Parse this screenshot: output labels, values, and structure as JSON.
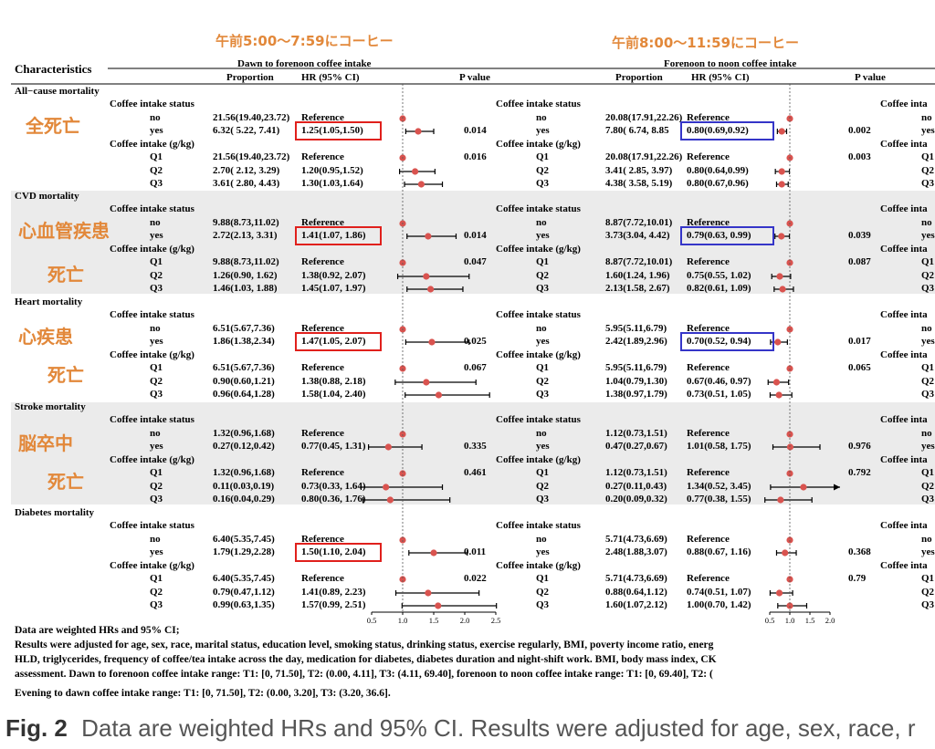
{
  "header_labels": {
    "left": "午前5:00〜7:59にコーヒー",
    "right": "午前8:00〜11:59にコーヒー"
  },
  "table_header": {
    "characteristics": "Characteristics",
    "group1": "Dawn to forenoon coffee intake",
    "group2": "Forenoon to noon coffee intake",
    "proportion": "Proportion",
    "hr": "HR (95% CI)",
    "pvalue": "P value"
  },
  "sub_labels": {
    "status": "Coffee intake status",
    "status_cut": "Coffee inta",
    "gkg": "Coffee intake (g/kg)",
    "gkg_cut": "Coffee inta"
  },
  "jp_labels": [
    {
      "row": "mortality-all",
      "lines": [
        "全死亡"
      ]
    },
    {
      "row": "mortality-cvd",
      "lines": [
        "心血管疾患",
        "死亡"
      ]
    },
    {
      "row": "mortality-heart",
      "lines": [
        "心疾患",
        "死亡"
      ]
    },
    {
      "row": "mortality-stroke",
      "lines": [
        "脳卒中",
        "死亡"
      ]
    }
  ],
  "chart_data": {
    "type": "forest",
    "axis1": {
      "ticks": [
        0.5,
        1.0,
        1.5,
        2.0,
        2.5
      ],
      "tick_labels": [
        "0.5",
        "1.0",
        "1.5",
        "2.0",
        "2.5"
      ],
      "reference": 1.0
    },
    "axis2": {
      "ticks": [
        0.5,
        1.0,
        1.5,
        2.0
      ],
      "tick_labels": [
        "0.5",
        "1.0",
        "1.5",
        "2.0"
      ],
      "reference": 1.0
    },
    "sections": [
      {
        "title": "All−cause mortality",
        "shaded": false,
        "status": [
          {
            "label": "no",
            "p1": "21.56(19.40,23.72)",
            "h1": "Reference",
            "e1": [
              1.0,
              1.0,
              1.0
            ],
            "p2": "20.08(17.91,22.26)",
            "h2": "Reference",
            "e2": [
              1.0,
              1.0,
              1.0
            ],
            "r3": "no"
          },
          {
            "label": "yes",
            "p1": "6.32( 5.22, 7.41)",
            "h1": "1.25(1.05,1.50)",
            "e1": [
              1.25,
              1.05,
              1.5
            ],
            "p2": "7.80( 6.74, 8.85",
            "h2": "0.80(0.69,0.92)",
            "e2": [
              0.8,
              0.69,
              0.92
            ],
            "r3": "yes"
          }
        ],
        "status_pv1": "0.014",
        "status_pv2": "0.002",
        "gkg": [
          {
            "label": "Q1",
            "p1": "21.56(19.40,23.72)",
            "h1": "Reference",
            "e1": [
              1.0,
              1.0,
              1.0
            ],
            "p2": "20.08(17.91,22.26)",
            "h2": "Reference",
            "e2": [
              1.0,
              1.0,
              1.0
            ],
            "r3": "Q1"
          },
          {
            "label": "Q2",
            "p1": "2.70( 2.12, 3.29)",
            "h1": "1.20(0.95,1.52)",
            "e1": [
              1.2,
              0.95,
              1.52
            ],
            "p2": "3.41( 2.85, 3.97)",
            "h2": "0.80(0.64,0.99)",
            "e2": [
              0.8,
              0.64,
              0.99
            ],
            "r3": "Q2"
          },
          {
            "label": "Q3",
            "p1": "3.61( 2.80, 4.43)",
            "h1": "1.30(1.03,1.64)",
            "e1": [
              1.3,
              1.03,
              1.64
            ],
            "p2": "4.38( 3.58, 5.19)",
            "h2": "0.80(0.67,0.96)",
            "e2": [
              0.8,
              0.67,
              0.96
            ],
            "r3": "Q3"
          }
        ],
        "gkg_pv1": "0.016",
        "gkg_pv2": "0.003"
      },
      {
        "title": "CVD mortality",
        "shaded": true,
        "status": [
          {
            "label": "no",
            "p1": "9.88(8.73,11.02)",
            "h1": "Reference",
            "e1": [
              1.0,
              1.0,
              1.0
            ],
            "p2": "8.87(7.72,10.01)",
            "h2": "Reference",
            "e2": [
              1.0,
              1.0,
              1.0
            ],
            "r3": "no"
          },
          {
            "label": "yes",
            "p1": "2.72(2.13, 3.31)",
            "h1": "1.41(1.07, 1.86)",
            "e1": [
              1.41,
              1.07,
              1.86
            ],
            "p2": "3.73(3.04, 4.42)",
            "h2": "0.79(0.63, 0.99)",
            "e2": [
              0.79,
              0.63,
              0.99
            ],
            "r3": "yes"
          }
        ],
        "status_pv1": "0.014",
        "status_pv2": "0.039",
        "gkg": [
          {
            "label": "Q1",
            "p1": "9.88(8.73,11.02)",
            "h1": "Reference",
            "e1": [
              1.0,
              1.0,
              1.0
            ],
            "p2": "8.87(7.72,10.01)",
            "h2": "Reference",
            "e2": [
              1.0,
              1.0,
              1.0
            ],
            "r3": "Q1"
          },
          {
            "label": "Q2",
            "p1": "1.26(0.90, 1.62)",
            "h1": "1.38(0.92, 2.07)",
            "e1": [
              1.38,
              0.92,
              2.07
            ],
            "p2": "1.60(1.24, 1.96)",
            "h2": "0.75(0.55, 1.02)",
            "e2": [
              0.75,
              0.55,
              1.02
            ],
            "r3": "Q2"
          },
          {
            "label": "Q3",
            "p1": "1.46(1.03, 1.88)",
            "h1": "1.45(1.07, 1.97)",
            "e1": [
              1.45,
              1.07,
              1.97
            ],
            "p2": "2.13(1.58, 2.67)",
            "h2": "0.82(0.61, 1.09)",
            "e2": [
              0.82,
              0.61,
              1.09
            ],
            "r3": "Q3"
          }
        ],
        "gkg_pv1": "0.047",
        "gkg_pv2": "0.087"
      },
      {
        "title": "Heart mortality",
        "shaded": false,
        "status": [
          {
            "label": "no",
            "p1": "6.51(5.67,7.36)",
            "h1": "Reference",
            "e1": [
              1.0,
              1.0,
              1.0
            ],
            "p2": "5.95(5.11,6.79)",
            "h2": "Reference",
            "e2": [
              1.0,
              1.0,
              1.0
            ],
            "r3": "no"
          },
          {
            "label": "yes",
            "p1": "1.86(1.38,2.34)",
            "h1": "1.47(1.05, 2.07)",
            "e1": [
              1.47,
              1.05,
              2.07
            ],
            "p2": "2.42(1.89,2.96)",
            "h2": "0.70(0.52, 0.94)",
            "e2": [
              0.7,
              0.52,
              0.94
            ],
            "r3": "yes"
          }
        ],
        "status_pv1": "0.025",
        "status_pv2": "0.017",
        "gkg": [
          {
            "label": "Q1",
            "p1": "6.51(5.67,7.36)",
            "h1": "Reference",
            "e1": [
              1.0,
              1.0,
              1.0
            ],
            "p2": "5.95(5.11,6.79)",
            "h2": "Reference",
            "e2": [
              1.0,
              1.0,
              1.0
            ],
            "r3": "Q1"
          },
          {
            "label": "Q2",
            "p1": "0.90(0.60,1.21)",
            "h1": "1.38(0.88, 2.18)",
            "e1": [
              1.38,
              0.88,
              2.18
            ],
            "p2": "1.04(0.79,1.30)",
            "h2": "0.67(0.46, 0.97)",
            "e2": [
              0.67,
              0.46,
              0.97
            ],
            "r3": "Q2"
          },
          {
            "label": "Q3",
            "p1": "0.96(0.64,1.28)",
            "h1": "1.58(1.04, 2.40)",
            "e1": [
              1.58,
              1.04,
              2.4
            ],
            "p2": "1.38(0.97,1.79)",
            "h2": "0.73(0.51, 1.05)",
            "e2": [
              0.73,
              0.51,
              1.05
            ],
            "r3": "Q3"
          }
        ],
        "gkg_pv1": "0.067",
        "gkg_pv2": "0.065"
      },
      {
        "title": "Stroke mortality",
        "shaded": true,
        "status": [
          {
            "label": "no",
            "p1": "1.32(0.96,1.68)",
            "h1": "Reference",
            "e1": [
              1.0,
              1.0,
              1.0
            ],
            "p2": "1.12(0.73,1.51)",
            "h2": "Reference",
            "e2": [
              1.0,
              1.0,
              1.0
            ],
            "r3": "no"
          },
          {
            "label": "yes",
            "p1": "0.27(0.12,0.42)",
            "h1": "0.77(0.45, 1.31)",
            "e1": [
              0.77,
              0.45,
              1.31
            ],
            "p2": "0.47(0.27,0.67)",
            "h2": "1.01(0.58, 1.75)",
            "e2": [
              1.01,
              0.58,
              1.75
            ],
            "r3": "yes"
          }
        ],
        "status_pv1": "0.335",
        "status_pv2": "0.976",
        "gkg": [
          {
            "label": "Q1",
            "p1": "1.32(0.96,1.68)",
            "h1": "Reference",
            "e1": [
              1.0,
              1.0,
              1.0
            ],
            "p2": "1.12(0.73,1.51)",
            "h2": "Reference",
            "e2": [
              1.0,
              1.0,
              1.0
            ],
            "r3": "Q1"
          },
          {
            "label": "Q2",
            "p1": "0.11(0.03,0.19)",
            "h1": "0.73(0.33, 1.64)",
            "e1": [
              0.73,
              0.33,
              1.64
            ],
            "p2": "0.27(0.11,0.43)",
            "h2": "1.34(0.52, 3.45)",
            "e2": [
              1.34,
              0.52,
              3.45
            ],
            "r3": "Q2"
          },
          {
            "label": "Q3",
            "p1": "0.16(0.04,0.29)",
            "h1": "0.80(0.36, 1.76)",
            "e1": [
              0.8,
              0.36,
              1.76
            ],
            "p2": "0.20(0.09,0.32)",
            "h2": "0.77(0.38, 1.55)",
            "e2": [
              0.77,
              0.38,
              1.55
            ],
            "r3": "Q3"
          }
        ],
        "gkg_pv1": "0.461",
        "gkg_pv2": "0.792"
      },
      {
        "title": "Diabetes mortality",
        "shaded": false,
        "status": [
          {
            "label": "no",
            "p1": "6.40(5.35,7.45)",
            "h1": "Reference",
            "e1": [
              1.0,
              1.0,
              1.0
            ],
            "p2": "5.71(4.73,6.69)",
            "h2": "Reference",
            "e2": [
              1.0,
              1.0,
              1.0
            ],
            "r3": "no"
          },
          {
            "label": "yes",
            "p1": "1.79(1.29,2.28)",
            "h1": "1.50(1.10, 2.04)",
            "e1": [
              1.5,
              1.1,
              2.04
            ],
            "p2": "2.48(1.88,3.07)",
            "h2": "0.88(0.67, 1.16)",
            "e2": [
              0.88,
              0.67,
              1.16
            ],
            "r3": "yes"
          }
        ],
        "status_pv1": "0.011",
        "status_pv2": "0.368",
        "gkg": [
          {
            "label": "Q1",
            "p1": "6.40(5.35,7.45)",
            "h1": "Reference",
            "e1": [
              1.0,
              1.0,
              1.0
            ],
            "p2": "5.71(4.73,6.69)",
            "h2": "Reference",
            "e2": [
              1.0,
              1.0,
              1.0
            ],
            "r3": "Q1"
          },
          {
            "label": "Q2",
            "p1": "0.79(0.47,1.12)",
            "h1": "1.41(0.89, 2.23)",
            "e1": [
              1.41,
              0.89,
              2.23
            ],
            "p2": "0.88(0.64,1.12)",
            "h2": "0.74(0.51, 1.07)",
            "e2": [
              0.74,
              0.51,
              1.07
            ],
            "r3": "Q2"
          },
          {
            "label": "Q3",
            "p1": "0.99(0.63,1.35)",
            "h1": "1.57(0.99, 2.51)",
            "e1": [
              1.57,
              0.99,
              2.51
            ],
            "p2": "1.60(1.07,2.12)",
            "h2": "1.00(0.70, 1.42)",
            "e2": [
              1.0,
              0.7,
              1.42
            ],
            "r3": "Q3"
          }
        ],
        "gkg_pv1": "0.022",
        "gkg_pv2": "0.79"
      }
    ]
  },
  "highlights": {
    "red_boxes": [
      "mortality-all-status-yes",
      "mortality-cvd-status-yes",
      "mortality-heart-status-yes",
      "mortality-diabetes-status-yes"
    ],
    "blue_boxes": [
      "mortality-all-status-yes",
      "mortality-cvd-status-yes",
      "mortality-heart-status-yes"
    ],
    "red_color": "#e0201c",
    "blue_color": "#3535c8",
    "accent_label_color": "#e2883a"
  },
  "footnote": [
    "Data are weighted HRs and 95% CI;",
    "Results were adjusted for age, sex, race, marital status, education level, smoking status, drinking status, exercise regularly, BMI, poverty income ratio, energ",
    "HLD, triglycerides, frequency of coffee/tea intake across the day, medication for diabetes, diabetes duration and night-shift work. BMI, body mass index, CK",
    "assessment. Dawn to forenoon coffee intake range: T1: [0, 71.50], T2: (0.00, 4.11], T3: (4.11, 69.40], forenoon to noon coffee intake range: T1: [0, 69.40], T2: (",
    "Evening to dawn coffee intake range: T1: [0, 71.50], T2: (0.00, 3.20], T3: (3.20, 36.6]."
  ],
  "caption": {
    "label": "Fig. 2",
    "text": "Data are weighted HRs and 95% CI. Results were adjusted for age, sex, race, r"
  }
}
